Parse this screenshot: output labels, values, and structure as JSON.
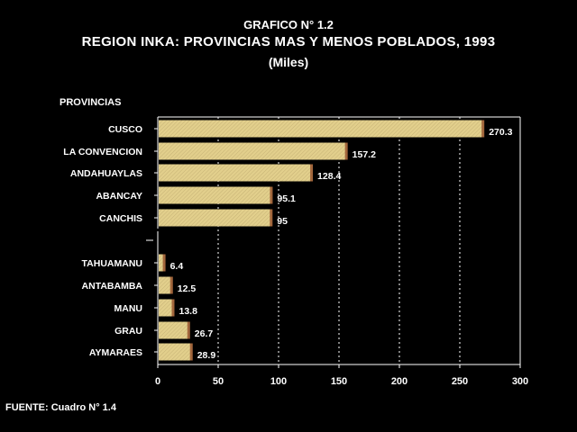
{
  "chart_data": {
    "type": "bar",
    "orientation": "horizontal",
    "title": "GRAFICO N° 1.2",
    "subtitle": "REGION INKA: PROVINCIAS MAS Y MENOS POBLADOS, 1993",
    "unit": "(Miles)",
    "ylabel": "PROVINCIAS",
    "xlim": [
      0,
      300
    ],
    "xticks": [
      "0",
      "50",
      "100",
      "150",
      "200",
      "250",
      "300"
    ],
    "grid": "vertical dashed",
    "groups": [
      {
        "categories": [
          "CUSCO",
          "LA CONVENCION",
          "ANDAHUAYLAS",
          "ABANCAY",
          "CANCHIS"
        ],
        "values": [
          270.3,
          157.2,
          128.4,
          95.1,
          95
        ],
        "labels": [
          "270.3",
          "157.2",
          "128.4",
          "95.1",
          "95"
        ]
      },
      {
        "categories": [
          "TAHUAMANU",
          "ANTABAMBA",
          "MANU",
          "GRAU",
          "AYMARAES"
        ],
        "values": [
          6.4,
          12.5,
          13.8,
          26.7,
          28.9
        ],
        "labels": [
          "6.4",
          "12.5",
          "13.8",
          "26.7",
          "28.9"
        ]
      }
    ],
    "colors": {
      "bar": "#e2cf8c",
      "bar_side": "#a2663c",
      "background": "#000000",
      "text": "#ffffff"
    }
  },
  "footer": {
    "source": "FUENTE: Cuadro N° 1.4"
  }
}
